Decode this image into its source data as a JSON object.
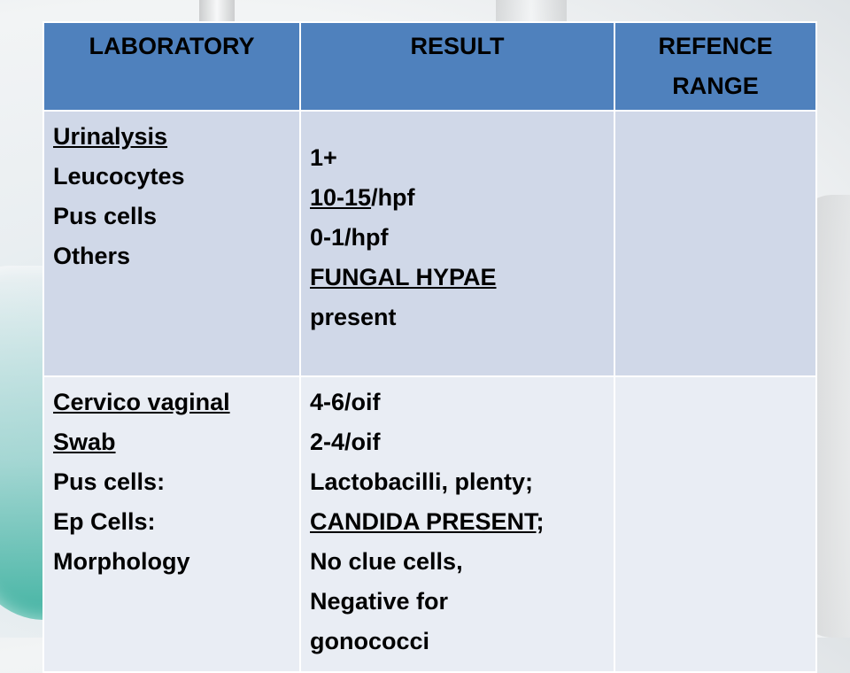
{
  "headers": [
    "LABORATORY",
    "RESULT",
    "REFENCE RANGE"
  ],
  "header_ref_line1": "REFENCE",
  "header_ref_line2": "RANGE",
  "rows": [
    {
      "lab": [
        "Urinalysis",
        "Leucocytes",
        "Pus cells",
        "Others"
      ],
      "result": {
        "l1": "1+",
        "l2a": "10-15",
        "l2b": "/hpf",
        "l3": "0-1/hpf",
        "l4": "FUNGAL HYPAE",
        "l5": "present"
      },
      "reference": ""
    },
    {
      "lab": [
        "Cervico vaginal",
        "Swab",
        "Pus cells:",
        "Ep Cells:",
        "Morphology"
      ],
      "result": {
        "l1": "4-6/oif",
        "l2": "2-4/oif",
        "l3": "Lactobacilli, plenty;",
        "l4a": "CANDIDA PRESENT",
        "l4b": ";",
        "l5": "No clue cells,",
        "l6": "Negative for",
        "l7": "gonococci"
      },
      "reference": ""
    }
  ]
}
